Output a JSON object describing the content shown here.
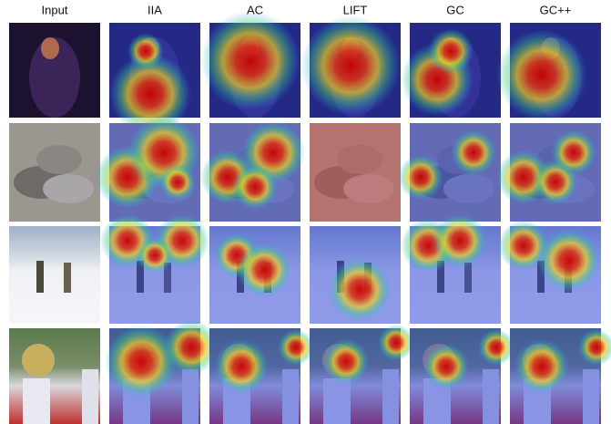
{
  "columns": [
    "Input",
    "IIA",
    "AC",
    "LIFT",
    "GC",
    "GC++"
  ]
}
